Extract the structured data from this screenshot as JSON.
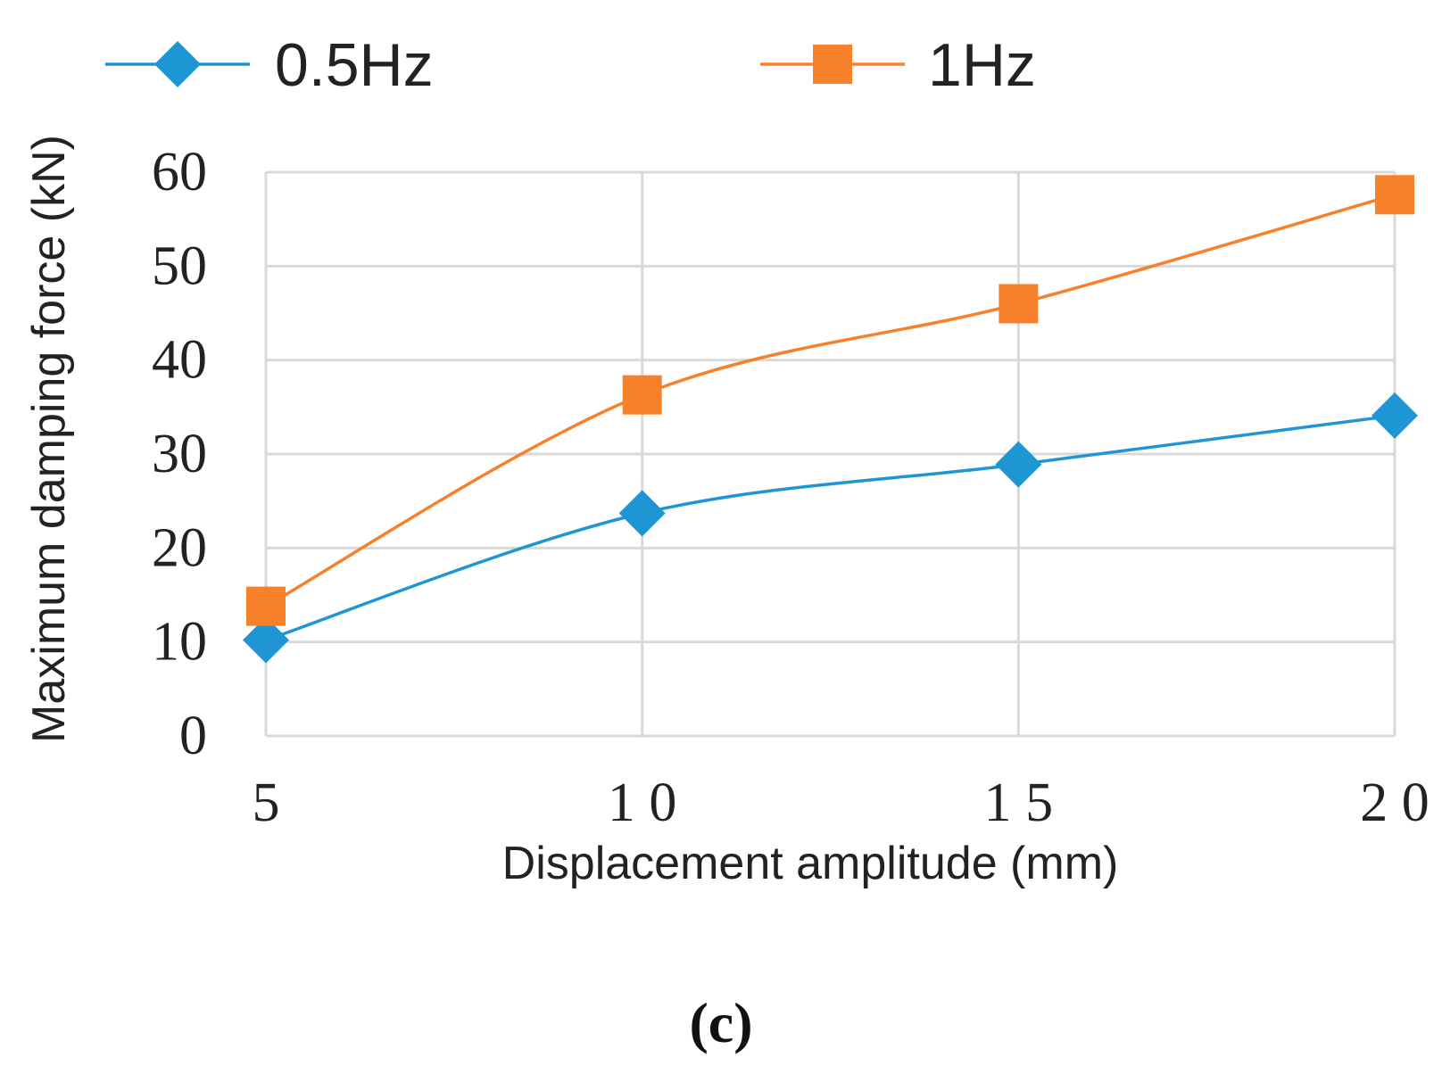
{
  "chart_data": {
    "type": "line",
    "title": "",
    "xlabel": "Displacement amplitude (mm)",
    "ylabel": "Maximum damping force (kN)",
    "categories": [
      5,
      10,
      15,
      20
    ],
    "x_tick_labels": [
      "5",
      "1 0",
      "1 5",
      "2 0"
    ],
    "y_ticks": [
      0,
      10,
      20,
      30,
      40,
      50,
      60
    ],
    "ylim": [
      0,
      60
    ],
    "grid": true,
    "legend_position": "top",
    "panel_label": "(c)",
    "series": [
      {
        "name": "0.5Hz",
        "marker": "diamond",
        "color": "#1f96d4",
        "values": [
          10.2,
          23.7,
          28.9,
          34.1
        ]
      },
      {
        "name": "1Hz",
        "marker": "square",
        "color": "#f7812a",
        "values": [
          13.8,
          36.3,
          46.0,
          57.6
        ]
      }
    ]
  }
}
